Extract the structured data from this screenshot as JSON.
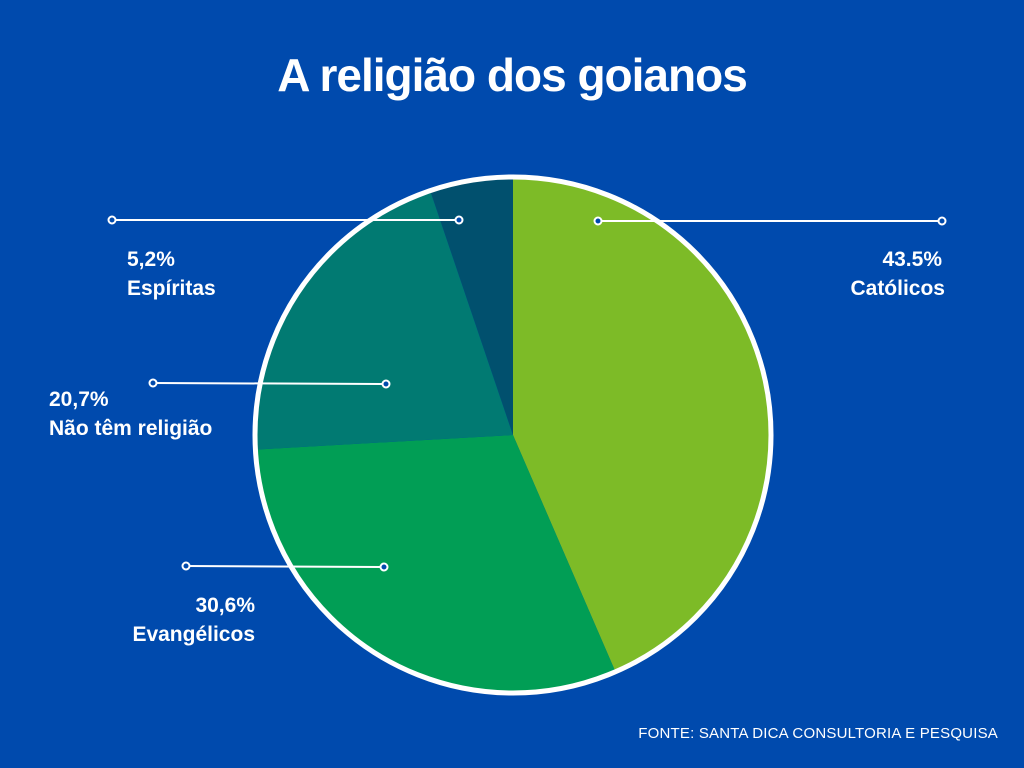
{
  "title": "A religião dos goianos",
  "source": "FONTE: SANTA DICA CONSULTORIA E PESQUISA",
  "chart_data": {
    "type": "pie",
    "title": "A religião dos goianos",
    "start_angle_deg": 0,
    "direction": "clockwise",
    "slices": [
      {
        "label": "Católicos",
        "value": 43.5,
        "value_text": "43.5%",
        "color": "#7dbb27"
      },
      {
        "label": "Evangélicos",
        "value": 30.6,
        "value_text": "30,6%",
        "color": "#019e55"
      },
      {
        "label": "Não têm religião",
        "value": 20.7,
        "value_text": "20,7%",
        "color": "#017a72"
      },
      {
        "label": "Espíritas",
        "value": 5.2,
        "value_text": "5,2%",
        "color": "#01506e"
      }
    ],
    "legend": "none",
    "labels": "outside with leader lines",
    "border_color": "#ffffff"
  },
  "colors": {
    "background": "#004aad",
    "text": "#ffffff"
  }
}
